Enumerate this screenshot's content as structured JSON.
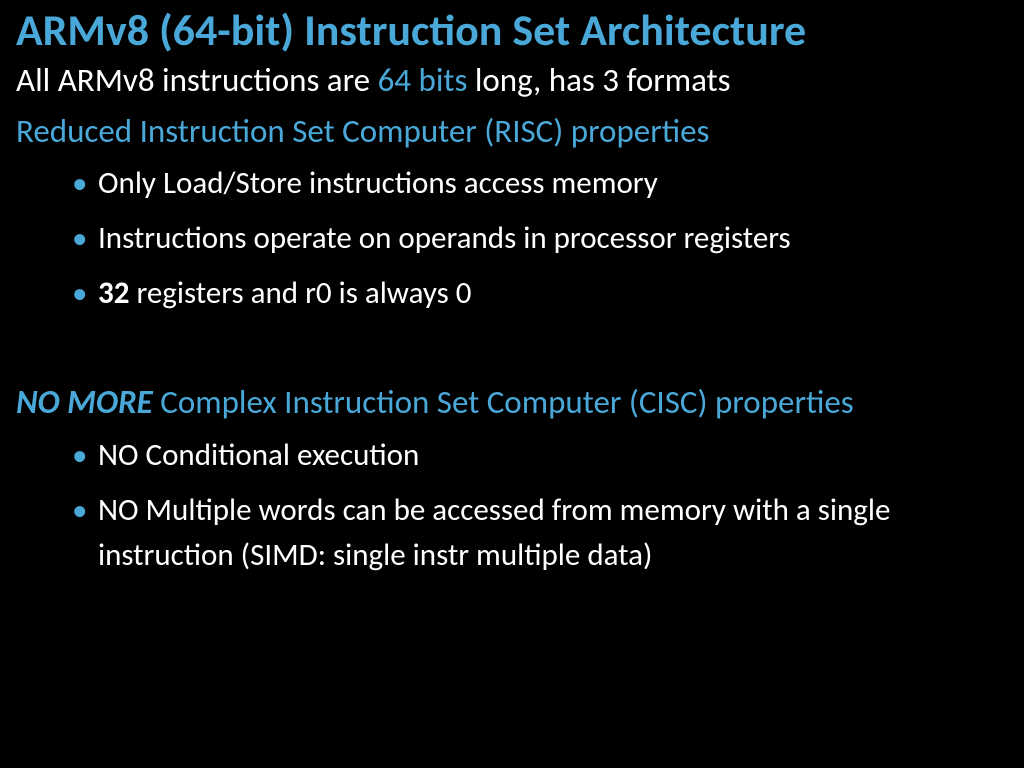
{
  "colors": {
    "background": "#000000",
    "text": "#ffffff",
    "accent": "#4aa8d8"
  },
  "typography": {
    "title_fontsize": 44,
    "body_fontsize": 33,
    "bullet_fontsize": 31,
    "font_family": "Calibri"
  },
  "title": "ARMv8 (64-bit) Instruction Set Architecture",
  "intro": {
    "pre": "All ARMv8 instructions are ",
    "accent": "64 bits",
    "post": " long, has 3 formats"
  },
  "section1": {
    "heading": "Reduced Instruction Set Computer (RISC) properties",
    "bullets": [
      {
        "text": "Only Load/Store instructions access memory"
      },
      {
        "text": "Instructions operate on operands in processor registers"
      },
      {
        "bold_prefix": "32",
        "rest": " registers and r0 is always 0"
      }
    ]
  },
  "section2": {
    "emph": "NO MORE",
    "heading_rest": " Complex Instruction Set Computer (CISC) properties",
    "bullets": [
      {
        "text": "NO Conditional execution"
      },
      {
        "text": "NO Multiple words can be accessed from memory with a single instruction (SIMD: single instr multiple data)"
      }
    ]
  }
}
